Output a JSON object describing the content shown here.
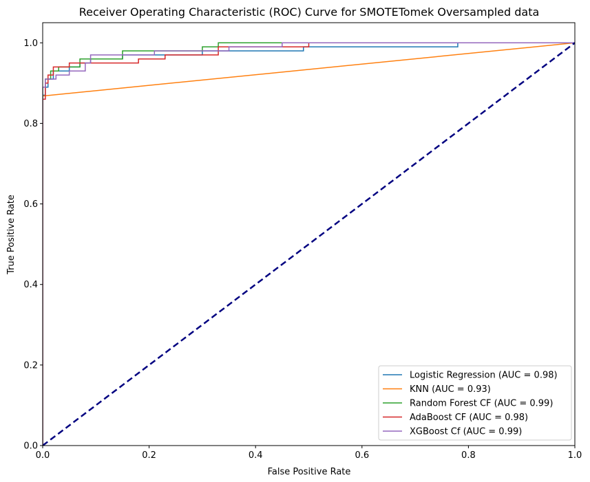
{
  "chart_data": {
    "type": "line",
    "title": "Receiver Operating Characteristic (ROC) Curve for SMOTETomek Oversampled data",
    "xlabel": "False Positive Rate",
    "ylabel": "True Positive Rate",
    "xlim": [
      0,
      1.0
    ],
    "ylim": [
      0,
      1.05
    ],
    "xticks": [
      "0.0",
      "0.2",
      "0.4",
      "0.6",
      "0.8",
      "1.0"
    ],
    "yticks": [
      "0.0",
      "0.2",
      "0.4",
      "0.6",
      "0.8",
      "1.0"
    ],
    "grid": false,
    "legend_position": "lower-right",
    "series": [
      {
        "name": "Logistic Regression (AUC = 0.98)",
        "color": "#1f77b4",
        "x": [
          0,
          0,
          0.005,
          0.005,
          0.01,
          0.01,
          0.02,
          0.02,
          0.05,
          0.05,
          0.07,
          0.07,
          0.09,
          0.09,
          0.15,
          0.15,
          0.3,
          0.3,
          0.36,
          0.36,
          0.49,
          0.49,
          0.78,
          0.78,
          1.0
        ],
        "y": [
          0,
          0.87,
          0.87,
          0.89,
          0.89,
          0.91,
          0.91,
          0.93,
          0.93,
          0.94,
          0.94,
          0.95,
          0.95,
          0.96,
          0.96,
          0.97,
          0.97,
          0.98,
          0.98,
          0.98,
          0.98,
          0.99,
          0.99,
          1.0,
          1.0
        ]
      },
      {
        "name": "KNN (AUC = 0.93)",
        "color": "#ff7f0e",
        "x": [
          0,
          0,
          1.0
        ],
        "y": [
          0,
          0.868,
          1.0
        ]
      },
      {
        "name": "Random Forest CF (AUC = 0.99)",
        "color": "#2ca02c",
        "x": [
          0,
          0,
          0.005,
          0.005,
          0.015,
          0.015,
          0.03,
          0.03,
          0.07,
          0.07,
          0.15,
          0.15,
          0.3,
          0.3,
          0.33,
          0.33,
          1.0
        ],
        "y": [
          0,
          0.89,
          0.89,
          0.91,
          0.91,
          0.93,
          0.93,
          0.94,
          0.94,
          0.96,
          0.96,
          0.98,
          0.98,
          0.99,
          0.99,
          1.0,
          1.0
        ]
      },
      {
        "name": "AdaBoost CF (AUC = 0.98)",
        "color": "#d62728",
        "x": [
          0,
          0,
          0.005,
          0.005,
          0.01,
          0.01,
          0.02,
          0.02,
          0.05,
          0.05,
          0.11,
          0.11,
          0.18,
          0.18,
          0.23,
          0.23,
          0.33,
          0.33,
          0.5,
          0.5,
          1.0
        ],
        "y": [
          0,
          0.86,
          0.86,
          0.9,
          0.9,
          0.92,
          0.92,
          0.94,
          0.94,
          0.95,
          0.95,
          0.95,
          0.95,
          0.96,
          0.96,
          0.97,
          0.97,
          0.99,
          0.99,
          1.0,
          1.0
        ]
      },
      {
        "name": "XGBoost Cf (AUC = 0.99)",
        "color": "#9467bd",
        "x": [
          0,
          0,
          0.005,
          0.005,
          0.025,
          0.025,
          0.05,
          0.05,
          0.08,
          0.08,
          0.09,
          0.09,
          0.21,
          0.21,
          0.35,
          0.35,
          0.45,
          0.45,
          1.0
        ],
        "y": [
          0,
          0.89,
          0.89,
          0.91,
          0.91,
          0.92,
          0.92,
          0.93,
          0.93,
          0.95,
          0.95,
          0.97,
          0.97,
          0.98,
          0.98,
          0.99,
          0.99,
          1.0,
          1.0
        ]
      }
    ],
    "reference_line": {
      "color": "#000080",
      "style": "dashed",
      "x": [
        0,
        1
      ],
      "y": [
        0,
        1
      ]
    }
  }
}
